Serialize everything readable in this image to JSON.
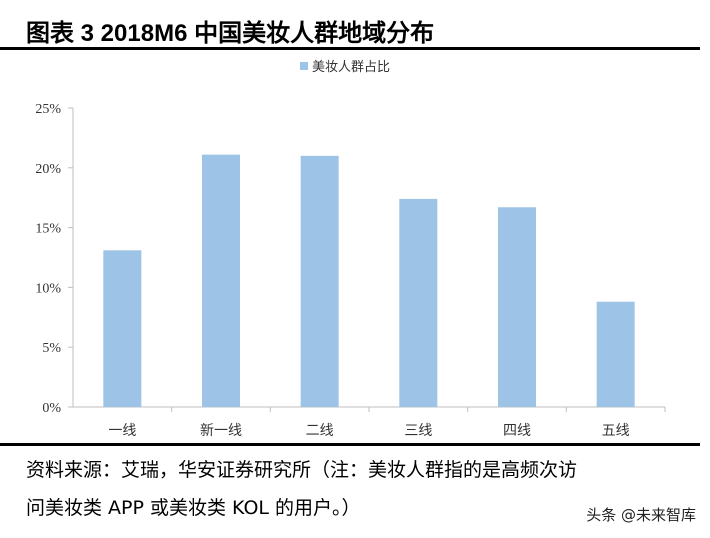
{
  "header": {
    "title": "图表 3 2018M6 中国美妆人群地域分布"
  },
  "chart_data": {
    "type": "bar",
    "title": "",
    "categories": [
      "一线",
      "新一线",
      "二线",
      "三线",
      "四线",
      "五线"
    ],
    "series": [
      {
        "name": "美妆人群占比",
        "values": [
          13.1,
          21.1,
          21.0,
          17.4,
          16.7,
          8.8
        ],
        "color": "#9dc3e6"
      }
    ],
    "xlabel": "",
    "ylabel": "",
    "ylim": [
      0,
      25
    ],
    "yticks": [
      0,
      5,
      10,
      15,
      20,
      25
    ],
    "ytick_labels": [
      "0%",
      "5%",
      "10%",
      "15%",
      "20%",
      "25%"
    ],
    "grid": false,
    "legend": "top-center"
  },
  "footer": {
    "source_line1": "资料来源：艾瑞，华安证券研究所（注：美妆人群指的是高频次访",
    "source_line2": "问美妆类 APP 或美妆类 KOL 的用户。）",
    "watermark": "头条 @未来智库"
  }
}
